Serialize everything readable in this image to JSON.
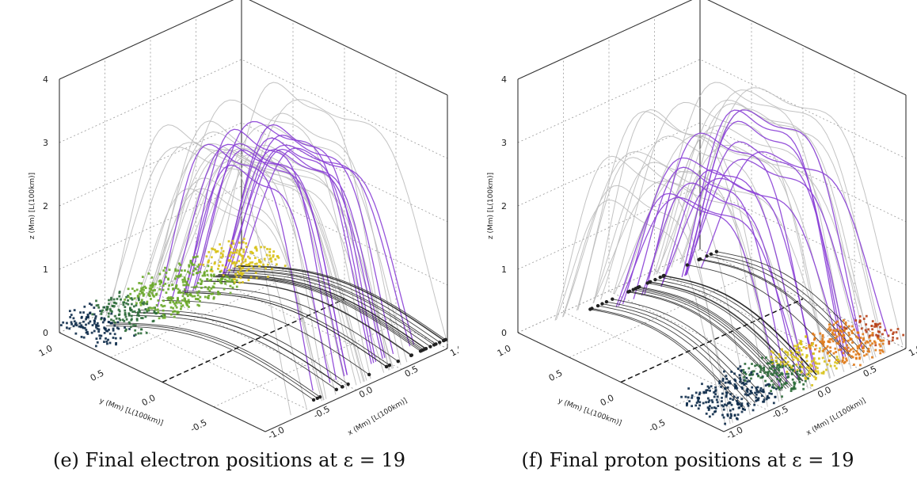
{
  "chart_data": [
    {
      "type": "scatter",
      "caption": "(e) Final electron positions at ε = 19",
      "z_axis_label": "z (Mm) [L(100km)]",
      "x_axis_label": "x (Mm) [L(100km)]",
      "y_axis_label": "y (Mm) [L(100km)]",
      "z_ticks": [
        "0",
        "1",
        "2",
        "3",
        "4"
      ],
      "y_ticks": [
        "1.0",
        "0.5",
        "0.0",
        "-0.5",
        "-1.0"
      ],
      "x_ticks": [
        "-1.0",
        "-0.5",
        "0.0",
        "0.5",
        "1.0"
      ],
      "zlim": [
        0,
        4
      ],
      "ylim": [
        -1.0,
        1.0
      ],
      "xlim": [
        -1.0,
        1.0
      ],
      "grid": true,
      "particle_region": "back-left"
    },
    {
      "type": "scatter",
      "caption": "(f) Final proton positions at ε = 19",
      "z_axis_label": "z (Mm) [L(100km)]",
      "x_axis_label": "x (Mm) [L(100km)]",
      "y_axis_label": "y (Mm) [L(100km)]",
      "z_ticks": [
        "0",
        "1",
        "2",
        "3",
        "4"
      ],
      "y_ticks": [
        "1.0",
        "0.5",
        "0.0",
        "-0.5",
        "-1.0"
      ],
      "x_ticks": [
        "-1.0",
        "-0.5",
        "0.0",
        "0.5",
        "1.0"
      ],
      "zlim": [
        0,
        4
      ],
      "ylim": [
        -1.0,
        1.0
      ],
      "xlim": [
        -1.0,
        1.0
      ],
      "grid": true,
      "particle_region": "front-right"
    }
  ],
  "colors": {
    "field_lines_grey": "#bdbdbd",
    "field_lines_purple": "#8a3fd6",
    "particle_trails": "#222222",
    "particle_colormap": [
      "#0d2b4a",
      "#2e6b3a",
      "#6aa82a",
      "#d8c21a",
      "#e07a18",
      "#b8431a"
    ]
  }
}
